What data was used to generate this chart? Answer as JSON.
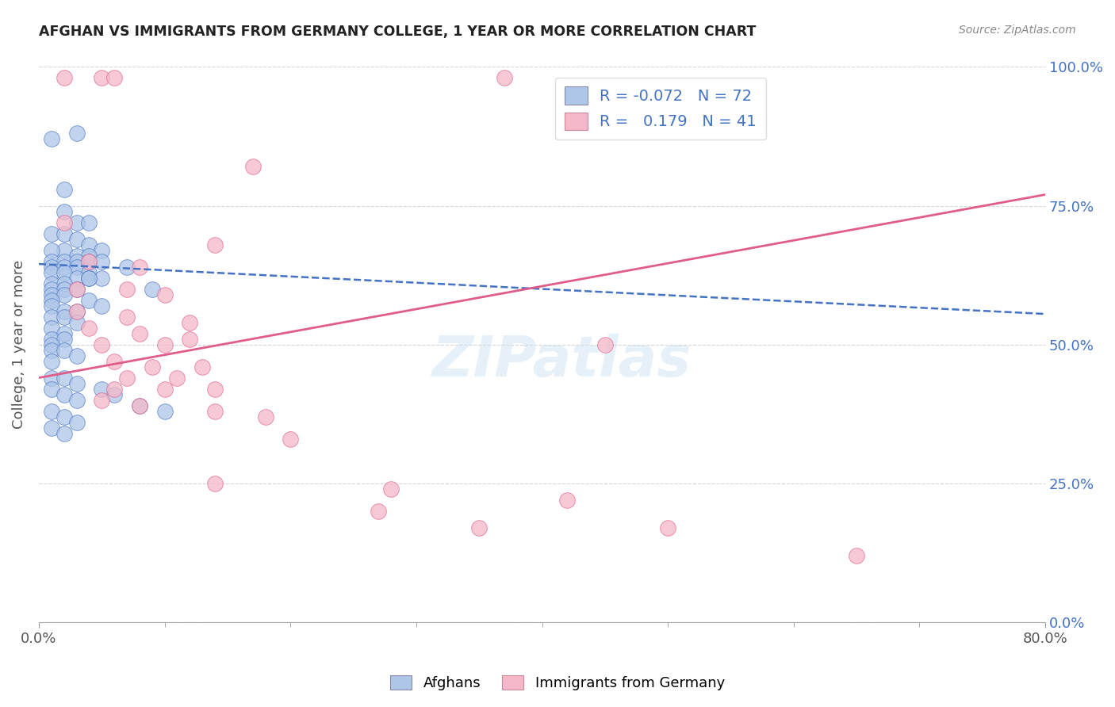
{
  "title": "AFGHAN VS IMMIGRANTS FROM GERMANY COLLEGE, 1 YEAR OR MORE CORRELATION CHART",
  "source": "Source: ZipAtlas.com",
  "ylabel": "College, 1 year or more",
  "legend_blue_r": "-0.072",
  "legend_blue_n": "72",
  "legend_pink_r": "0.179",
  "legend_pink_n": "41",
  "legend_label_blue": "Afghans",
  "legend_label_pink": "Immigrants from Germany",
  "blue_color": "#aec6e8",
  "pink_color": "#f5b8c8",
  "blue_line_color": "#4472c4",
  "pink_line_color": "#e05c8a",
  "watermark": "ZIPatlas",
  "blue_dots": [
    [
      0.01,
      0.87
    ],
    [
      0.02,
      0.78
    ],
    [
      0.03,
      0.88
    ],
    [
      0.02,
      0.74
    ],
    [
      0.03,
      0.72
    ],
    [
      0.04,
      0.72
    ],
    [
      0.01,
      0.7
    ],
    [
      0.02,
      0.7
    ],
    [
      0.03,
      0.69
    ],
    [
      0.04,
      0.68
    ],
    [
      0.05,
      0.67
    ],
    [
      0.02,
      0.67
    ],
    [
      0.01,
      0.67
    ],
    [
      0.03,
      0.66
    ],
    [
      0.04,
      0.66
    ],
    [
      0.01,
      0.65
    ],
    [
      0.02,
      0.65
    ],
    [
      0.03,
      0.65
    ],
    [
      0.04,
      0.65
    ],
    [
      0.05,
      0.65
    ],
    [
      0.01,
      0.64
    ],
    [
      0.02,
      0.64
    ],
    [
      0.03,
      0.64
    ],
    [
      0.04,
      0.63
    ],
    [
      0.01,
      0.63
    ],
    [
      0.02,
      0.63
    ],
    [
      0.03,
      0.62
    ],
    [
      0.04,
      0.62
    ],
    [
      0.05,
      0.62
    ],
    [
      0.01,
      0.61
    ],
    [
      0.02,
      0.61
    ],
    [
      0.01,
      0.6
    ],
    [
      0.02,
      0.6
    ],
    [
      0.03,
      0.6
    ],
    [
      0.01,
      0.59
    ],
    [
      0.02,
      0.59
    ],
    [
      0.01,
      0.58
    ],
    [
      0.04,
      0.58
    ],
    [
      0.05,
      0.57
    ],
    [
      0.01,
      0.57
    ],
    [
      0.02,
      0.56
    ],
    [
      0.03,
      0.56
    ],
    [
      0.01,
      0.55
    ],
    [
      0.02,
      0.55
    ],
    [
      0.03,
      0.54
    ],
    [
      0.01,
      0.53
    ],
    [
      0.02,
      0.52
    ],
    [
      0.01,
      0.51
    ],
    [
      0.02,
      0.51
    ],
    [
      0.01,
      0.5
    ],
    [
      0.01,
      0.49
    ],
    [
      0.02,
      0.49
    ],
    [
      0.03,
      0.48
    ],
    [
      0.01,
      0.47
    ],
    [
      0.04,
      0.62
    ],
    [
      0.07,
      0.64
    ],
    [
      0.09,
      0.6
    ],
    [
      0.01,
      0.44
    ],
    [
      0.02,
      0.44
    ],
    [
      0.03,
      0.43
    ],
    [
      0.01,
      0.42
    ],
    [
      0.02,
      0.41
    ],
    [
      0.03,
      0.4
    ],
    [
      0.01,
      0.38
    ],
    [
      0.02,
      0.37
    ],
    [
      0.03,
      0.36
    ],
    [
      0.01,
      0.35
    ],
    [
      0.02,
      0.34
    ],
    [
      0.05,
      0.42
    ],
    [
      0.06,
      0.41
    ],
    [
      0.08,
      0.39
    ],
    [
      0.1,
      0.38
    ]
  ],
  "pink_dots": [
    [
      0.02,
      0.98
    ],
    [
      0.05,
      0.98
    ],
    [
      0.06,
      0.98
    ],
    [
      0.37,
      0.98
    ],
    [
      0.17,
      0.82
    ],
    [
      0.02,
      0.72
    ],
    [
      0.14,
      0.68
    ],
    [
      0.04,
      0.65
    ],
    [
      0.08,
      0.64
    ],
    [
      0.03,
      0.6
    ],
    [
      0.07,
      0.6
    ],
    [
      0.1,
      0.59
    ],
    [
      0.03,
      0.56
    ],
    [
      0.07,
      0.55
    ],
    [
      0.12,
      0.54
    ],
    [
      0.04,
      0.53
    ],
    [
      0.08,
      0.52
    ],
    [
      0.12,
      0.51
    ],
    [
      0.05,
      0.5
    ],
    [
      0.1,
      0.5
    ],
    [
      0.45,
      0.5
    ],
    [
      0.06,
      0.47
    ],
    [
      0.09,
      0.46
    ],
    [
      0.13,
      0.46
    ],
    [
      0.07,
      0.44
    ],
    [
      0.11,
      0.44
    ],
    [
      0.06,
      0.42
    ],
    [
      0.1,
      0.42
    ],
    [
      0.14,
      0.42
    ],
    [
      0.05,
      0.4
    ],
    [
      0.08,
      0.39
    ],
    [
      0.14,
      0.38
    ],
    [
      0.18,
      0.37
    ],
    [
      0.2,
      0.33
    ],
    [
      0.14,
      0.25
    ],
    [
      0.28,
      0.24
    ],
    [
      0.42,
      0.22
    ],
    [
      0.27,
      0.2
    ],
    [
      0.35,
      0.17
    ],
    [
      0.5,
      0.17
    ],
    [
      0.65,
      0.12
    ]
  ],
  "xlim": [
    0.0,
    0.8
  ],
  "ylim": [
    0.0,
    1.0
  ],
  "blue_trend_x": [
    0.0,
    0.8
  ],
  "blue_trend_y": [
    0.645,
    0.555
  ],
  "pink_trend_x": [
    0.0,
    0.8
  ],
  "pink_trend_y": [
    0.44,
    0.77
  ]
}
